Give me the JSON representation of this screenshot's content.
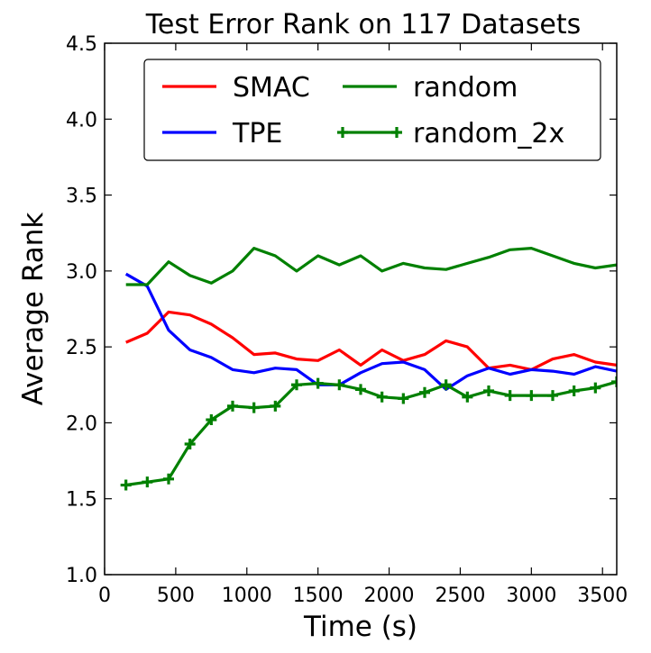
{
  "chart_data": {
    "type": "line",
    "title": "Test Error Rank on 117 Datasets",
    "xlabel": "Time (s)",
    "ylabel": "Average Rank",
    "xlim": [
      0,
      3600
    ],
    "ylim": [
      1.0,
      4.5
    ],
    "xticks": [
      "0",
      "500",
      "1000",
      "1500",
      "2000",
      "2500",
      "3000",
      "3500"
    ],
    "yticks": [
      "1.0",
      "1.5",
      "2.0",
      "2.5",
      "3.0",
      "3.5",
      "4.0",
      "4.5"
    ],
    "grid": false,
    "legend_position": "top-right",
    "x": [
      150,
      300,
      450,
      600,
      750,
      900,
      1050,
      1200,
      1350,
      1500,
      1650,
      1800,
      1950,
      2100,
      2250,
      2400,
      2550,
      2700,
      2850,
      3000,
      3150,
      3300,
      3450,
      3600
    ],
    "series": [
      {
        "name": "SMAC",
        "color": "#ff0000",
        "marker": "none",
        "values": [
          2.53,
          2.59,
          2.73,
          2.71,
          2.65,
          2.56,
          2.45,
          2.46,
          2.42,
          2.41,
          2.48,
          2.38,
          2.48,
          2.41,
          2.45,
          2.54,
          2.5,
          2.36,
          2.38,
          2.35,
          2.42,
          2.45,
          2.4,
          2.38
        ]
      },
      {
        "name": "TPE",
        "color": "#0000ff",
        "marker": "none",
        "values": [
          2.98,
          2.9,
          2.61,
          2.48,
          2.43,
          2.35,
          2.33,
          2.36,
          2.35,
          2.25,
          2.25,
          2.33,
          2.39,
          2.4,
          2.35,
          2.22,
          2.31,
          2.36,
          2.32,
          2.35,
          2.34,
          2.32,
          2.37,
          2.34
        ]
      },
      {
        "name": "random",
        "color": "#008000",
        "marker": "none",
        "values": [
          2.91,
          2.91,
          3.06,
          2.97,
          2.92,
          3.0,
          3.15,
          3.1,
          3.0,
          3.1,
          3.04,
          3.1,
          3.0,
          3.05,
          3.02,
          3.01,
          3.05,
          3.09,
          3.14,
          3.15,
          3.1,
          3.05,
          3.02,
          3.04
        ]
      },
      {
        "name": "random_2x",
        "color": "#008000",
        "marker": "plus",
        "values": [
          1.59,
          1.61,
          1.63,
          1.86,
          2.02,
          2.11,
          2.1,
          2.11,
          2.25,
          2.26,
          2.25,
          2.22,
          2.17,
          2.16,
          2.2,
          2.25,
          2.17,
          2.21,
          2.18,
          2.18,
          2.18,
          2.21,
          2.23,
          2.27
        ]
      }
    ]
  }
}
